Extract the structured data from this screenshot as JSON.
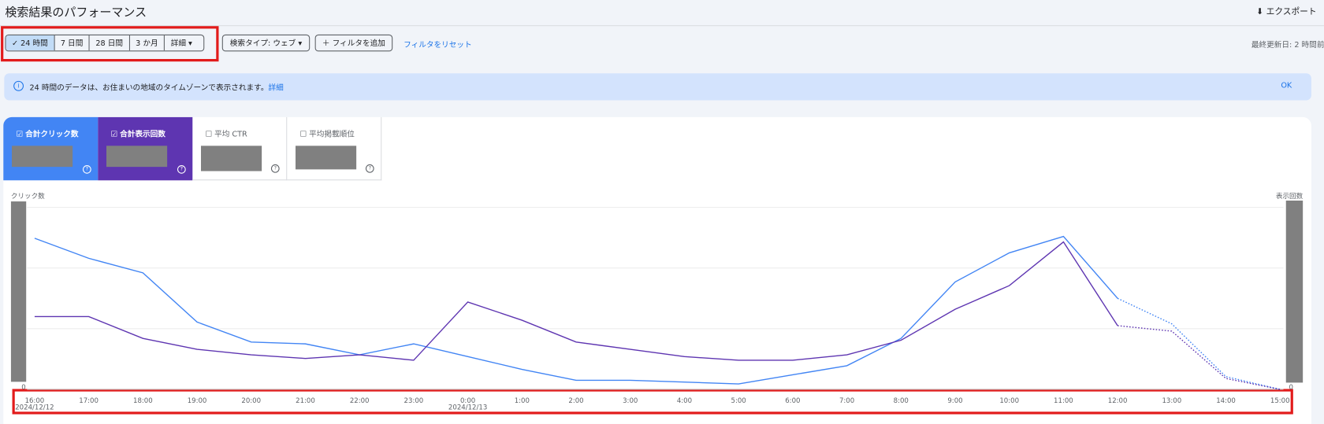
{
  "header": {
    "title": "検索結果のパフォーマンス",
    "export": "エクスポート"
  },
  "toolbar": {
    "ranges": [
      "24 時間",
      "7 日間",
      "28 日間",
      "3 か月"
    ],
    "more": "詳細",
    "search_type": "検索タイプ: ウェブ",
    "add_filter": "フィルタを追加",
    "reset_filter": "フィルタをリセット",
    "updated": "最終更新日: 2 時間前"
  },
  "notice": {
    "text": "24 時間のデータは、お住まいの地域のタイムゾーンで表示されます。",
    "link": "詳細",
    "ok": "OK"
  },
  "cards": [
    "合計クリック数",
    "合計表示回数",
    "平均 CTR",
    "平均掲載順位"
  ],
  "chart_data": {
    "type": "line",
    "y_label": "クリック数",
    "y2_label": "表示回数",
    "categories": [
      "16:00",
      "17:00",
      "18:00",
      "19:00",
      "20:00",
      "21:00",
      "22:00",
      "23:00",
      "0:00",
      "1:00",
      "2:00",
      "3:00",
      "4:00",
      "5:00",
      "6:00",
      "7:00",
      "8:00",
      "9:00",
      "10:00",
      "11:00",
      "12:00",
      "13:00",
      "14:00",
      "15:00"
    ],
    "dates": [
      "2024/12/12",
      null,
      null,
      null,
      null,
      null,
      null,
      null,
      "2024/12/13",
      null,
      null,
      null,
      null,
      null,
      null,
      null,
      null,
      null,
      null,
      null,
      null,
      null,
      null,
      null
    ],
    "ylim": [
      0,
      100
    ],
    "yticks": [
      0
    ],
    "y2lim": [
      0,
      100
    ],
    "y2ticks": [
      0
    ],
    "dotted_from_index": 20,
    "series": [
      {
        "name": "合計クリック数",
        "color": "#4285f4",
        "values": [
          83,
          72,
          64,
          37,
          26,
          25,
          19,
          25,
          18,
          11,
          5,
          5,
          4,
          3,
          8,
          13,
          28,
          59,
          75,
          84,
          50,
          36,
          7,
          0
        ]
      },
      {
        "name": "合計表示回数",
        "color": "#5e35b1",
        "axis": "y2",
        "values": [
          40,
          40,
          28,
          22,
          19,
          17,
          19,
          16,
          48,
          38,
          26,
          22,
          18,
          16,
          16,
          19,
          27,
          44,
          57,
          81,
          35,
          32,
          6,
          0
        ]
      }
    ]
  }
}
